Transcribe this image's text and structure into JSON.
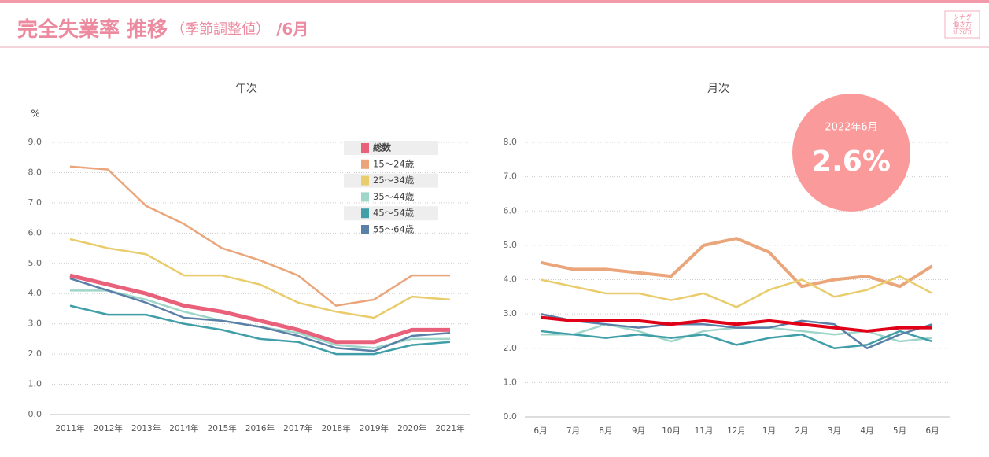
{
  "header": {
    "title": "完全失業率 推移",
    "subtitle": "（季節調整値）",
    "note": "/6月"
  },
  "logo": [
    "ツナグ",
    "働き方",
    "研究所"
  ],
  "chart_data": [
    {
      "type": "line",
      "title": "年次",
      "y_unit": "%",
      "legend": true,
      "grid": true,
      "categories": [
        "2011年",
        "2012年",
        "2013年",
        "2014年",
        "2015年",
        "2016年",
        "2017年",
        "2018年",
        "2019年",
        "2020年",
        "2021年"
      ],
      "ylim": [
        0,
        9
      ],
      "yticks": [
        {
          "value": 0,
          "label": "0.0"
        },
        {
          "value": 1,
          "label": "1.0"
        },
        {
          "value": 2,
          "label": "2.0"
        },
        {
          "value": 3,
          "label": "3.0"
        },
        {
          "value": 4,
          "label": "4.0"
        },
        {
          "value": 5,
          "label": "5.0"
        },
        {
          "value": 6,
          "label": "6.0"
        },
        {
          "value": 7,
          "label": "7.0"
        },
        {
          "value": 8,
          "label": "8.0"
        },
        {
          "value": 9,
          "label": "9.0"
        }
      ],
      "series": [
        {
          "name": "総数",
          "color": "#e8607a",
          "values": [
            4.6,
            4.3,
            4.0,
            3.6,
            3.4,
            3.1,
            2.8,
            2.4,
            2.4,
            2.8,
            2.8
          ]
        },
        {
          "name": "15～24歳",
          "color": "#eaa67a",
          "values": [
            8.2,
            8.1,
            6.9,
            6.3,
            5.5,
            5.1,
            4.6,
            3.6,
            3.8,
            4.6,
            4.6
          ]
        },
        {
          "name": "25～34歳",
          "color": "#e9cc6c",
          "values": [
            5.8,
            5.5,
            5.3,
            4.6,
            4.6,
            4.3,
            3.7,
            3.4,
            3.2,
            3.9,
            3.8
          ]
        },
        {
          "name": "35～44歳",
          "color": "#a0d5c9",
          "values": [
            4.1,
            4.1,
            3.8,
            3.4,
            3.1,
            2.9,
            2.7,
            2.3,
            2.2,
            2.5,
            2.5
          ]
        },
        {
          "name": "45～54歳",
          "color": "#3f9ea8",
          "values": [
            3.6,
            3.3,
            3.3,
            3.0,
            2.8,
            2.5,
            2.4,
            2.0,
            2.0,
            2.3,
            2.4
          ]
        },
        {
          "name": "55～64歳",
          "color": "#5a80a8",
          "values": [
            4.5,
            4.1,
            3.7,
            3.2,
            3.1,
            2.9,
            2.6,
            2.2,
            2.1,
            2.6,
            2.7
          ]
        }
      ]
    },
    {
      "type": "line",
      "title": "月次",
      "legend": false,
      "grid": true,
      "categories": [
        "6月",
        "7月",
        "8月",
        "9月",
        "10月",
        "11月",
        "12月",
        "1月",
        "2月",
        "3月",
        "4月",
        "5月",
        "6月"
      ],
      "ylim": [
        0,
        8
      ],
      "yticks": [
        {
          "value": 0,
          "label": "0.0"
        },
        {
          "value": 1,
          "label": "1.0"
        },
        {
          "value": 2,
          "label": "2.0"
        },
        {
          "value": 3,
          "label": "3.0"
        },
        {
          "value": 4,
          "label": "4.0"
        },
        {
          "value": 5,
          "label": "5.0"
        },
        {
          "value": 6,
          "label": "6.0"
        },
        {
          "value": 7,
          "label": "7.0"
        },
        {
          "value": 8,
          "label": "8.0"
        }
      ],
      "annotation": {
        "title": "2022年6月",
        "label": "2.6%"
      },
      "series": [
        {
          "name": "15～24歳",
          "color": "#eaa67a",
          "values": [
            4.5,
            4.3,
            4.3,
            4.2,
            4.1,
            5.0,
            5.2,
            4.8,
            3.8,
            4.0,
            4.1,
            3.8,
            4.4
          ]
        },
        {
          "name": "25～34歳",
          "color": "#e9cc6c",
          "values": [
            4.0,
            3.8,
            3.6,
            3.6,
            3.4,
            3.6,
            3.2,
            3.7,
            4.0,
            3.5,
            3.7,
            4.1,
            3.6
          ]
        },
        {
          "name": "35～44歳",
          "color": "#a0d5c9",
          "values": [
            2.4,
            2.4,
            2.7,
            2.5,
            2.2,
            2.5,
            2.6,
            2.6,
            2.5,
            2.4,
            2.5,
            2.2,
            2.3
          ]
        },
        {
          "name": "45～54歳",
          "color": "#3f9ea8",
          "values": [
            2.5,
            2.4,
            2.3,
            2.4,
            2.3,
            2.4,
            2.1,
            2.3,
            2.4,
            2.0,
            2.1,
            2.5,
            2.2
          ]
        },
        {
          "name": "55～64歳",
          "color": "#5a80a8",
          "values": [
            3.0,
            2.8,
            2.7,
            2.6,
            2.7,
            2.7,
            2.6,
            2.6,
            2.8,
            2.7,
            2.0,
            2.4,
            2.7
          ]
        },
        {
          "name": "総数",
          "color": "#e00018",
          "values": [
            2.9,
            2.8,
            2.8,
            2.8,
            2.7,
            2.8,
            2.7,
            2.8,
            2.7,
            2.6,
            2.5,
            2.6,
            2.6
          ]
        }
      ]
    }
  ]
}
